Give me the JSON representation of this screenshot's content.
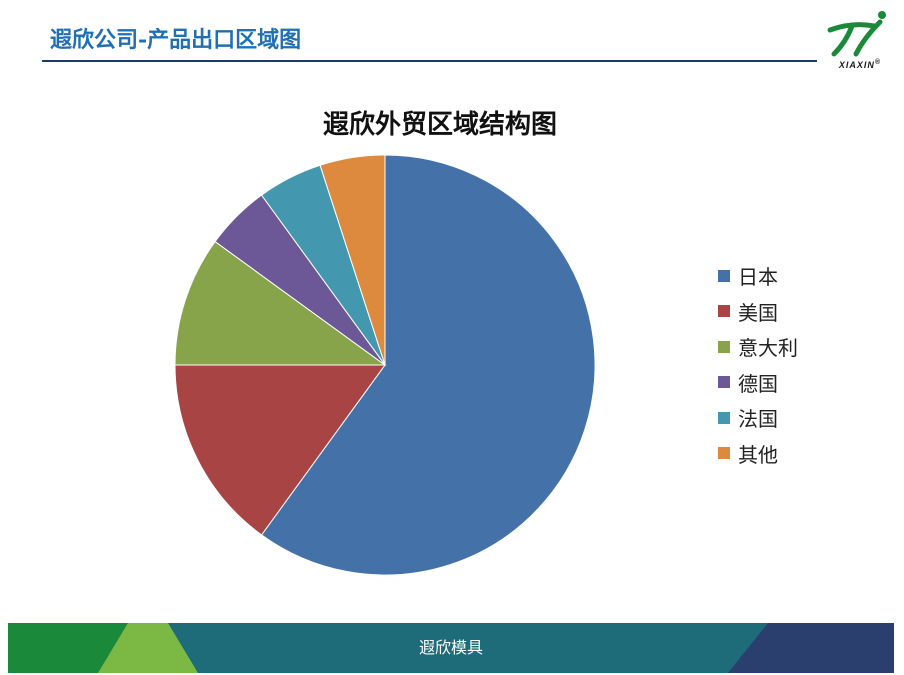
{
  "header": {
    "title": "遐欣公司-产品出口区域图"
  },
  "logo": {
    "text": "XIAXIN",
    "registered": "®"
  },
  "footer": {
    "text": "遐欣模具"
  },
  "colors": {
    "title_blue": "#1f6fb5",
    "rule": "#1a3a6e",
    "footer_dark_green": "#1a8a3a",
    "footer_light_green": "#7cb844",
    "footer_teal": "#1e6b7a",
    "footer_navy": "#2a3f6e"
  },
  "chart_data": {
    "type": "pie",
    "title": "遐欣外贸区域结构图",
    "legend_position": "right",
    "categories": [
      "日本",
      "美国",
      "意大利",
      "德国",
      "法国",
      "其他"
    ],
    "values": [
      60,
      15,
      10,
      5,
      5,
      5
    ],
    "colors": [
      "#4472a8",
      "#a84444",
      "#88a44a",
      "#6c5896",
      "#4398b0",
      "#de8a3e"
    ]
  }
}
